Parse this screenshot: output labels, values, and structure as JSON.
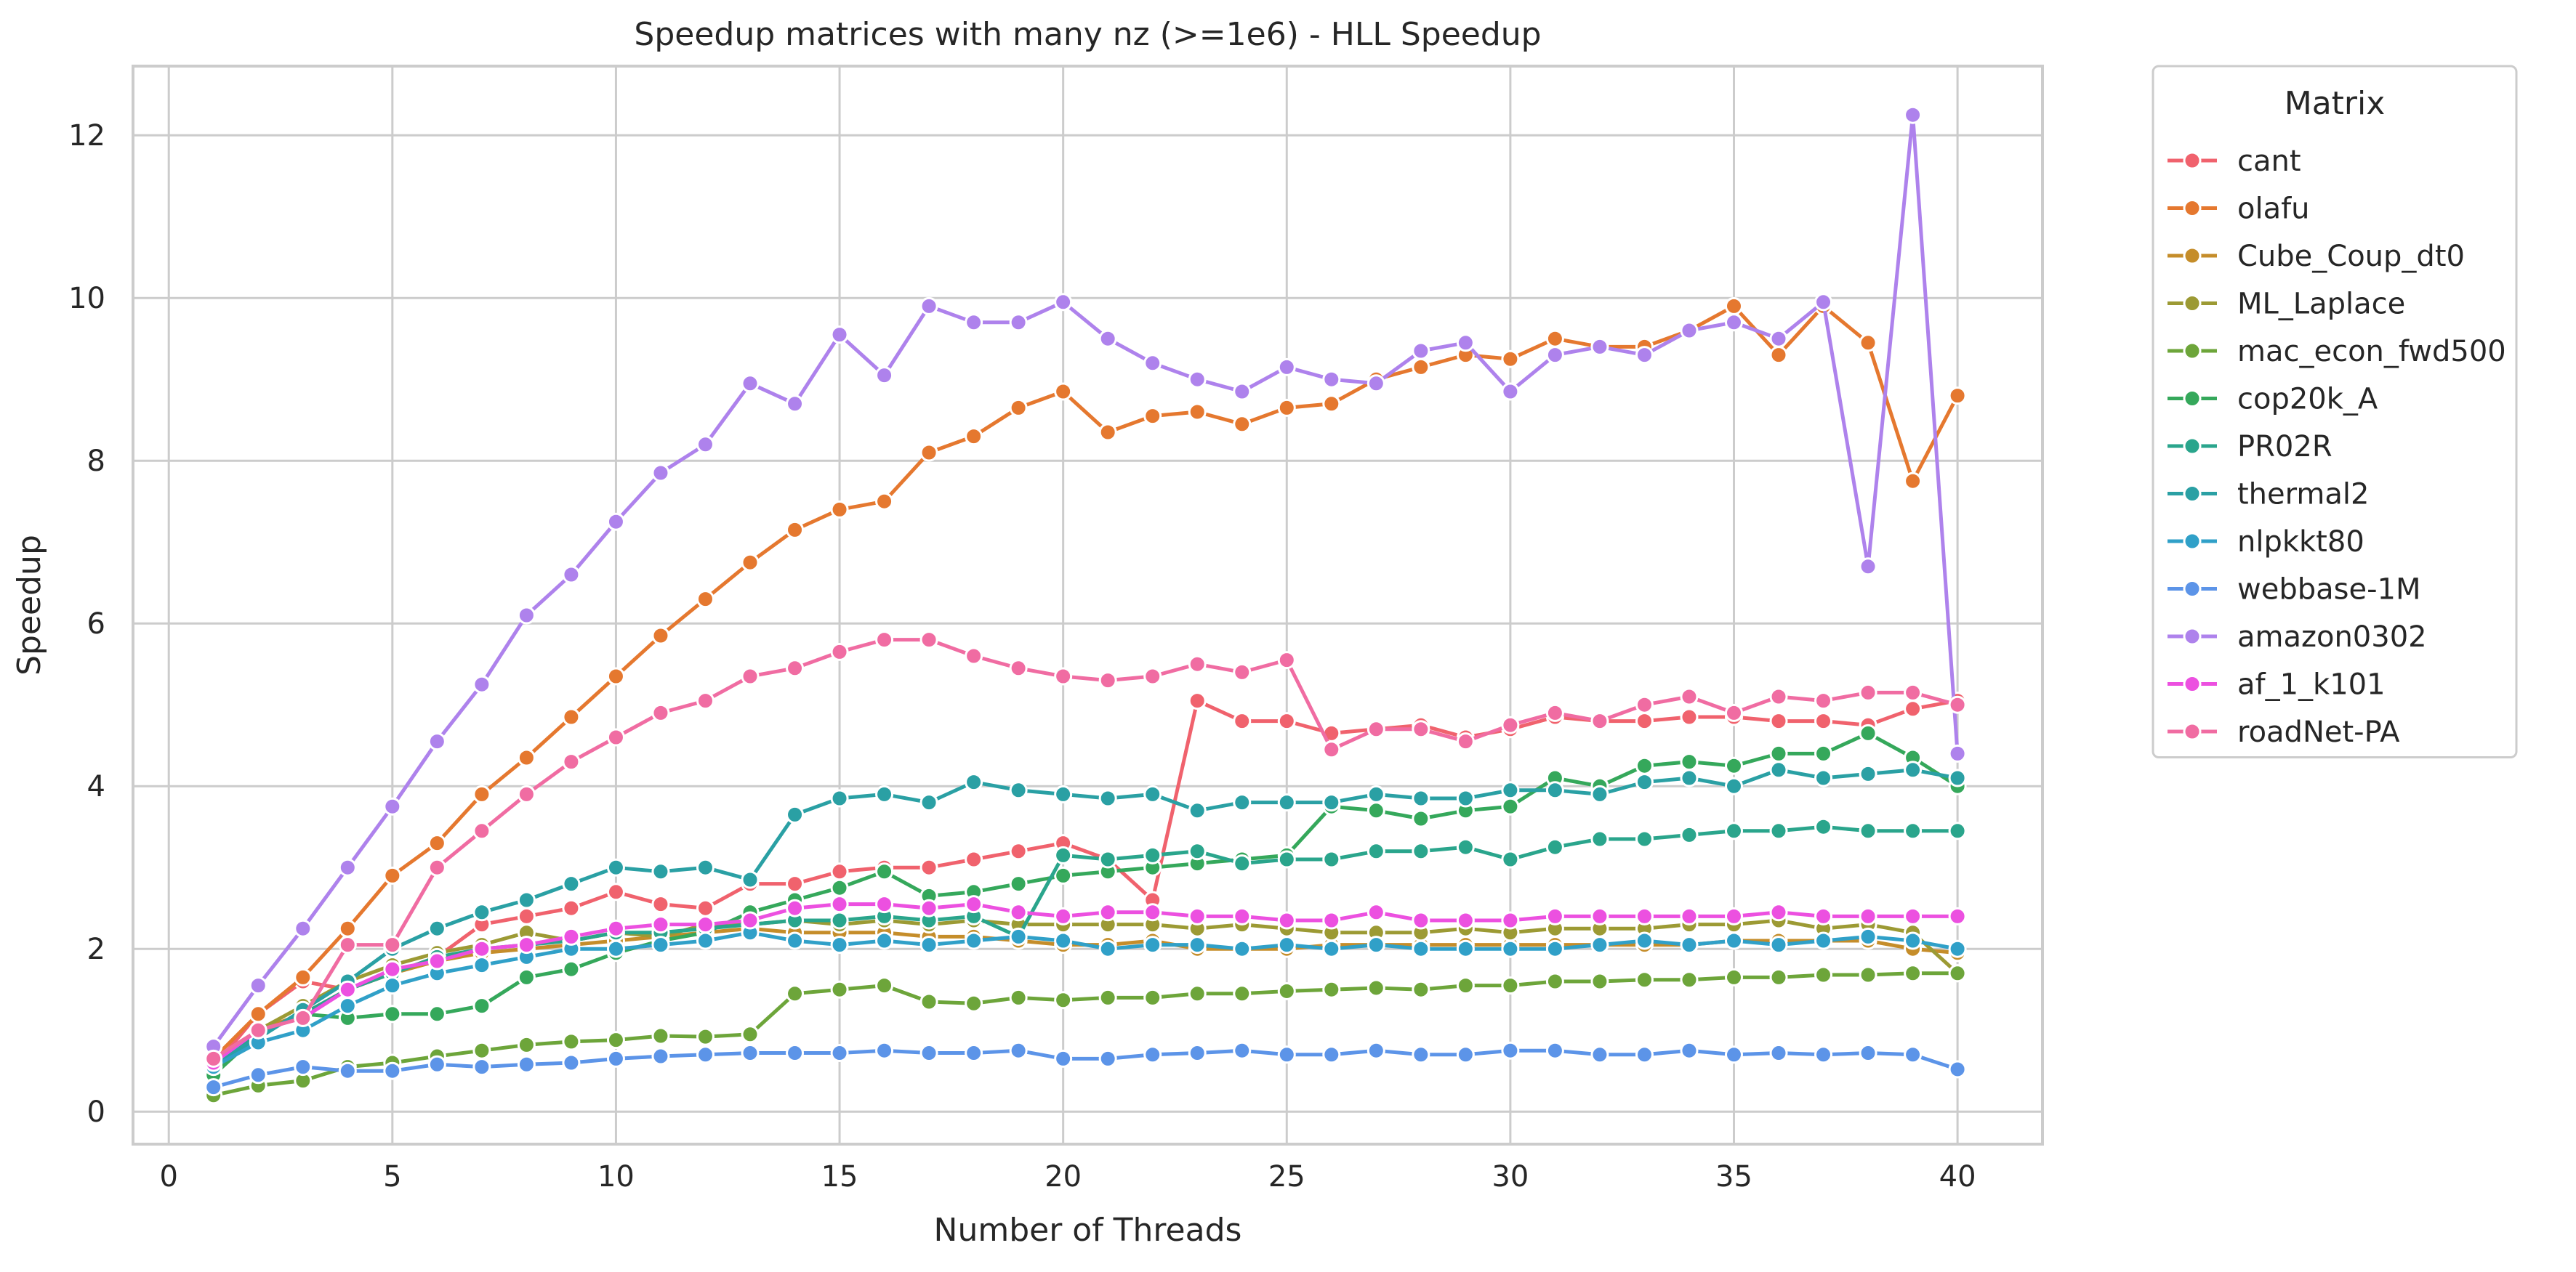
{
  "chart_data": {
    "type": "line",
    "title": "Speedup matrices with many nz (>=1e6) - HLL Speedup",
    "xlabel": "Number of Threads",
    "ylabel": "Speedup",
    "xlim": [
      -0.8,
      41.9
    ],
    "ylim": [
      -0.4,
      12.85
    ],
    "xticks": [
      0,
      5,
      10,
      15,
      20,
      25,
      30,
      35,
      40
    ],
    "yticks": [
      0,
      2,
      4,
      6,
      8,
      10,
      12
    ],
    "grid": true,
    "legend": {
      "title": "Matrix",
      "placement": "outside-top-right"
    },
    "x": [
      1,
      2,
      3,
      4,
      5,
      6,
      7,
      8,
      9,
      10,
      11,
      12,
      13,
      14,
      15,
      16,
      17,
      18,
      19,
      20,
      21,
      22,
      23,
      24,
      25,
      26,
      27,
      28,
      29,
      30,
      31,
      32,
      33,
      34,
      35,
      36,
      37,
      38,
      39,
      40
    ],
    "series": [
      {
        "name": "cant",
        "color": "#f0626d",
        "values": [
          0.55,
          1.2,
          1.6,
          1.5,
          1.7,
          1.9,
          2.3,
          2.4,
          2.5,
          2.7,
          2.55,
          2.5,
          2.8,
          2.8,
          2.95,
          3.0,
          3.0,
          3.1,
          3.2,
          3.3,
          3.1,
          2.6,
          5.05,
          4.8,
          4.8,
          4.65,
          4.7,
          4.75,
          4.6,
          4.7,
          4.85,
          4.8,
          4.8,
          4.85,
          4.85,
          4.8,
          4.8,
          4.75,
          4.95,
          5.05
        ]
      },
      {
        "name": "olafu",
        "color": "#e5782f",
        "values": [
          0.65,
          1.2,
          1.65,
          2.25,
          2.9,
          3.3,
          3.9,
          4.35,
          4.85,
          5.35,
          5.85,
          6.3,
          6.75,
          7.15,
          7.4,
          7.5,
          8.1,
          8.3,
          8.65,
          8.85,
          8.35,
          8.55,
          8.6,
          8.45,
          8.65,
          8.7,
          9.0,
          9.15,
          9.3,
          9.25,
          9.5,
          9.4,
          9.4,
          9.6,
          9.9,
          9.3,
          9.9,
          9.45,
          7.75,
          8.8
        ]
      },
      {
        "name": "Cube_Coup_dt0",
        "color": "#c58d2a",
        "values": [
          0.6,
          1.0,
          1.2,
          1.5,
          1.7,
          1.85,
          1.95,
          2.0,
          2.05,
          2.1,
          2.15,
          2.2,
          2.25,
          2.2,
          2.2,
          2.2,
          2.15,
          2.15,
          2.1,
          2.05,
          2.05,
          2.1,
          2.0,
          2.0,
          2.0,
          2.05,
          2.05,
          2.05,
          2.05,
          2.05,
          2.05,
          2.05,
          2.05,
          2.05,
          2.1,
          2.1,
          2.1,
          2.1,
          2.0,
          1.95
        ]
      },
      {
        "name": "ML_Laplace",
        "color": "#9c9a34",
        "values": [
          0.5,
          1.0,
          1.3,
          1.6,
          1.8,
          1.95,
          2.05,
          2.2,
          2.1,
          2.2,
          2.15,
          2.3,
          2.3,
          2.35,
          2.3,
          2.35,
          2.3,
          2.35,
          2.3,
          2.3,
          2.3,
          2.3,
          2.25,
          2.3,
          2.25,
          2.2,
          2.2,
          2.2,
          2.25,
          2.2,
          2.25,
          2.25,
          2.25,
          2.3,
          2.3,
          2.35,
          2.25,
          2.3,
          2.2,
          1.7
        ]
      },
      {
        "name": "mac_econ_fwd500",
        "color": "#6da53a",
        "values": [
          0.2,
          0.32,
          0.38,
          0.55,
          0.6,
          0.68,
          0.75,
          0.82,
          0.86,
          0.88,
          0.93,
          0.92,
          0.95,
          1.45,
          1.5,
          1.55,
          1.35,
          1.33,
          1.4,
          1.37,
          1.4,
          1.4,
          1.45,
          1.45,
          1.48,
          1.5,
          1.52,
          1.5,
          1.55,
          1.55,
          1.6,
          1.6,
          1.62,
          1.62,
          1.65,
          1.65,
          1.68,
          1.68,
          1.7,
          1.7
        ]
      },
      {
        "name": "cop20k_A",
        "color": "#35a85b",
        "values": [
          0.45,
          0.95,
          1.2,
          1.15,
          1.2,
          1.2,
          1.3,
          1.65,
          1.75,
          1.95,
          2.1,
          2.2,
          2.45,
          2.6,
          2.75,
          2.95,
          2.65,
          2.7,
          2.8,
          2.9,
          2.95,
          3.0,
          3.05,
          3.1,
          3.15,
          3.75,
          3.7,
          3.6,
          3.7,
          3.75,
          4.1,
          4.0,
          4.25,
          4.3,
          4.25,
          4.4,
          4.4,
          4.65,
          4.35,
          4.0
        ]
      },
      {
        "name": "PR02R",
        "color": "#2aa58c",
        "values": [
          0.55,
          0.95,
          1.2,
          1.5,
          1.7,
          1.9,
          2.0,
          2.05,
          2.1,
          2.2,
          2.2,
          2.25,
          2.3,
          2.35,
          2.35,
          2.4,
          2.35,
          2.4,
          2.15,
          3.15,
          3.1,
          3.15,
          3.2,
          3.05,
          3.1,
          3.1,
          3.2,
          3.2,
          3.25,
          3.1,
          3.25,
          3.35,
          3.35,
          3.4,
          3.45,
          3.45,
          3.5,
          3.45,
          3.45,
          3.45
        ]
      },
      {
        "name": "thermal2",
        "color": "#2aa0a4",
        "values": [
          0.6,
          0.9,
          1.25,
          1.6,
          2.0,
          2.25,
          2.45,
          2.6,
          2.8,
          3.0,
          2.95,
          3.0,
          2.85,
          3.65,
          3.85,
          3.9,
          3.8,
          4.05,
          3.95,
          3.9,
          3.85,
          3.9,
          3.7,
          3.8,
          3.8,
          3.8,
          3.9,
          3.85,
          3.85,
          3.95,
          3.95,
          3.9,
          4.05,
          4.1,
          4.0,
          4.2,
          4.1,
          4.15,
          4.2,
          4.1
        ]
      },
      {
        "name": "nlpkkt80",
        "color": "#30a0c8",
        "values": [
          0.55,
          0.85,
          1.0,
          1.3,
          1.55,
          1.7,
          1.8,
          1.9,
          2.0,
          2.0,
          2.05,
          2.1,
          2.2,
          2.1,
          2.05,
          2.1,
          2.05,
          2.1,
          2.15,
          2.1,
          2.0,
          2.05,
          2.05,
          2.0,
          2.05,
          2.0,
          2.05,
          2.0,
          2.0,
          2.0,
          2.0,
          2.05,
          2.1,
          2.05,
          2.1,
          2.05,
          2.1,
          2.15,
          2.1,
          2.0
        ]
      },
      {
        "name": "webbase-1M",
        "color": "#5c94e8",
        "values": [
          0.3,
          0.45,
          0.55,
          0.5,
          0.5,
          0.58,
          0.55,
          0.58,
          0.6,
          0.65,
          0.68,
          0.7,
          0.72,
          0.72,
          0.72,
          0.75,
          0.72,
          0.72,
          0.75,
          0.65,
          0.65,
          0.7,
          0.72,
          0.75,
          0.7,
          0.7,
          0.75,
          0.7,
          0.7,
          0.75,
          0.75,
          0.7,
          0.7,
          0.75,
          0.7,
          0.72,
          0.7,
          0.72,
          0.7,
          0.52
        ]
      },
      {
        "name": "amazon0302",
        "color": "#ae82ec",
        "values": [
          0.8,
          1.55,
          2.25,
          3.0,
          3.75,
          4.55,
          5.25,
          6.1,
          6.6,
          7.25,
          7.85,
          8.2,
          8.95,
          8.7,
          9.55,
          9.05,
          9.9,
          9.7,
          9.7,
          9.95,
          9.5,
          9.2,
          9.0,
          8.85,
          9.15,
          9.0,
          8.95,
          9.35,
          9.45,
          8.85,
          9.3,
          9.4,
          9.3,
          9.6,
          9.7,
          9.5,
          9.95,
          6.7,
          12.25,
          4.4
        ]
      },
      {
        "name": "af_1_k101",
        "color": "#ec50e0",
        "values": [
          0.6,
          1.0,
          1.15,
          1.5,
          1.75,
          1.85,
          2.0,
          2.05,
          2.15,
          2.25,
          2.3,
          2.3,
          2.35,
          2.5,
          2.55,
          2.55,
          2.5,
          2.55,
          2.45,
          2.4,
          2.45,
          2.45,
          2.4,
          2.4,
          2.35,
          2.35,
          2.45,
          2.35,
          2.35,
          2.35,
          2.4,
          2.4,
          2.4,
          2.4,
          2.4,
          2.45,
          2.4,
          2.4,
          2.4,
          2.4
        ]
      },
      {
        "name": "roadNet-PA",
        "color": "#f06ca2",
        "values": [
          0.65,
          1.0,
          1.15,
          2.05,
          2.05,
          3.0,
          3.45,
          3.9,
          4.3,
          4.6,
          4.9,
          5.05,
          5.35,
          5.45,
          5.65,
          5.8,
          5.8,
          5.6,
          5.45,
          5.35,
          5.3,
          5.35,
          5.5,
          5.4,
          5.55,
          4.45,
          4.7,
          4.7,
          4.55,
          4.75,
          4.9,
          4.8,
          5.0,
          5.1,
          4.9,
          5.1,
          5.05,
          5.15,
          5.15,
          5.0
        ]
      }
    ]
  }
}
